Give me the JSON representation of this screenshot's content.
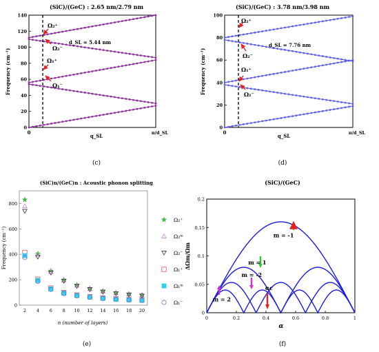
{
  "chart_data": [
    {
      "panel": "(c)",
      "type": "line",
      "title": "(SiC)/(GeC) : 2.65 nm/2.79 nm",
      "xlabel": "q_SL",
      "ylabel": "Frequency (cm⁻¹)",
      "x_ticks": [
        "0",
        "π/d_SL"
      ],
      "ylim": [
        0,
        140
      ],
      "y_ticks": [
        0,
        20,
        40,
        60,
        80,
        100,
        120,
        140
      ],
      "annotation": "d_SL = 5.44 nm",
      "mode_labels": [
        "Ω₂⁺",
        "Ω₂⁻",
        "Ω₁⁺",
        "Ω₁⁻"
      ],
      "branches": [
        [
          0,
          27
        ],
        [
          54,
          30
        ],
        [
          56,
          84
        ],
        [
          110,
          87
        ],
        [
          112,
          140
        ]
      ],
      "color": "#8e2f9e"
    },
    {
      "panel": "(d)",
      "type": "line",
      "title": "(SiC)/(GeC) : 3.78 nm/3.98 nm",
      "xlabel": "q_SL",
      "ylabel": "Frequency (cm⁻¹)",
      "x_ticks": [
        "0",
        "π/d_SL"
      ],
      "ylim": [
        0,
        100
      ],
      "y_ticks": [
        0,
        20,
        40,
        60,
        80,
        100
      ],
      "annotation": "d_SL = 7.76 nm",
      "mode_labels": [
        "Ω₂⁺",
        "Ω₂⁻",
        "Ω₁⁺",
        "Ω₁⁻"
      ],
      "branches": [
        [
          0,
          19
        ],
        [
          38,
          21
        ],
        [
          40,
          60
        ],
        [
          78,
          59
        ],
        [
          80,
          99
        ]
      ],
      "color": "#5f5fe8"
    },
    {
      "panel": "(e)",
      "type": "scatter",
      "title": "(SiC)n/(GeC)n : Acoustic phonon splitting",
      "xlabel": "n (number of layers)",
      "ylabel": "Frequency (cm⁻¹)",
      "ylim": [
        0,
        900
      ],
      "y_ticks": [
        0,
        200,
        400,
        600,
        800
      ],
      "x": [
        2,
        4,
        6,
        8,
        10,
        12,
        14,
        16,
        18,
        20
      ],
      "series": [
        {
          "name": "Ω₂⁺",
          "marker": "star",
          "color": "#33cc33",
          "values": [
            830,
            405,
            270,
            200,
            160,
            132,
            112,
            98,
            88,
            80
          ]
        },
        {
          "name": "Ω₂ᵐ",
          "marker": "triangle-up",
          "color": "#e07ad6",
          "values": [
            780,
            395,
            262,
            195,
            155,
            128,
            108,
            95,
            85,
            77
          ]
        },
        {
          "name": "Ω₂⁻",
          "marker": "triangle-down",
          "color": "#333333",
          "values": [
            740,
            380,
            255,
            190,
            150,
            124,
            105,
            92,
            82,
            74
          ]
        },
        {
          "name": "Ω₁⁺",
          "marker": "square",
          "color": "#e05050",
          "values": [
            415,
            205,
            135,
            100,
            80,
            67,
            57,
            50,
            44,
            40
          ]
        },
        {
          "name": "Ω₁ᵐ",
          "marker": "filled-square",
          "color": "#33d0ec",
          "values": [
            390,
            195,
            128,
            95,
            76,
            64,
            54,
            47,
            42,
            38
          ]
        },
        {
          "name": "Ω₁⁻",
          "marker": "circle",
          "color": "#6b6bd8",
          "values": [
            375,
            188,
            124,
            92,
            74,
            62,
            53,
            46,
            41,
            37
          ]
        }
      ]
    },
    {
      "panel": "(f)",
      "type": "line",
      "title": "(SiC)/(GeC)",
      "xlabel": "α",
      "ylabel": "ΔΩm/Ωm",
      "xlim": [
        0,
        1
      ],
      "ylim": [
        0,
        0.2
      ],
      "x_ticks": [
        0,
        0.2,
        0.4,
        0.6,
        0.8,
        1.0
      ],
      "y_ticks": [
        0,
        0.05,
        0.1,
        0.15,
        0.2
      ],
      "arch_amplitude": 0.16,
      "arch_orders": [
        1,
        2,
        3,
        4
      ],
      "labels": [
        {
          "text": "m = -1",
          "x": 0.45,
          "y": 0.133
        },
        {
          "text": "m = 1",
          "x": 0.28,
          "y": 0.085
        },
        {
          "text": "m = -2",
          "x": 0.235,
          "y": 0.063
        },
        {
          "text": "m = 2",
          "x": 0.04,
          "y": 0.02
        },
        {
          "text": "αc",
          "x": 0.395,
          "y": 0.04
        }
      ],
      "color": "#1a1ae6"
    }
  ],
  "panel_labels": [
    "(c)",
    "(d)",
    "(e)",
    "(f)"
  ]
}
